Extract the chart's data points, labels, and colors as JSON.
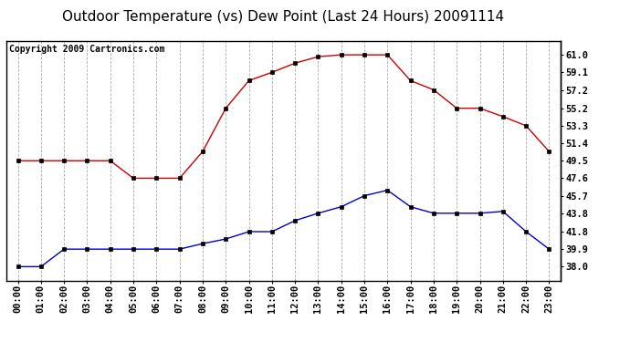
{
  "title": "Outdoor Temperature (vs) Dew Point (Last 24 Hours) 20091114",
  "copyright": "Copyright 2009 Cartronics.com",
  "x_labels": [
    "00:00",
    "01:00",
    "02:00",
    "03:00",
    "04:00",
    "05:00",
    "06:00",
    "07:00",
    "08:00",
    "09:00",
    "10:00",
    "11:00",
    "12:00",
    "13:00",
    "14:00",
    "15:00",
    "16:00",
    "17:00",
    "18:00",
    "19:00",
    "20:00",
    "21:00",
    "22:00",
    "23:00"
  ],
  "temp_data": [
    49.5,
    49.5,
    49.5,
    49.5,
    49.5,
    47.6,
    47.6,
    47.6,
    50.5,
    55.2,
    58.2,
    59.1,
    60.1,
    60.8,
    61.0,
    61.0,
    61.0,
    58.2,
    57.2,
    55.2,
    55.2,
    54.3,
    53.3,
    50.5
  ],
  "dew_data": [
    38.0,
    38.0,
    39.9,
    39.9,
    39.9,
    39.9,
    39.9,
    39.9,
    40.5,
    41.0,
    41.8,
    41.8,
    43.0,
    43.8,
    44.5,
    45.7,
    46.3,
    44.5,
    43.8,
    43.8,
    43.8,
    44.0,
    41.8,
    39.9
  ],
  "temp_color": "#cc0000",
  "dew_color": "#0000cc",
  "bg_color": "#ffffff",
  "plot_bg_color": "#ffffff",
  "grid_color": "#aaaaaa",
  "ylim": [
    36.5,
    62.5
  ],
  "yticks_right": [
    38.0,
    39.9,
    41.8,
    43.8,
    45.7,
    47.6,
    49.5,
    51.4,
    53.3,
    55.2,
    57.2,
    59.1,
    61.0
  ],
  "title_fontsize": 11,
  "copyright_fontsize": 7,
  "tick_fontsize": 7.5,
  "marker_size": 3.5
}
